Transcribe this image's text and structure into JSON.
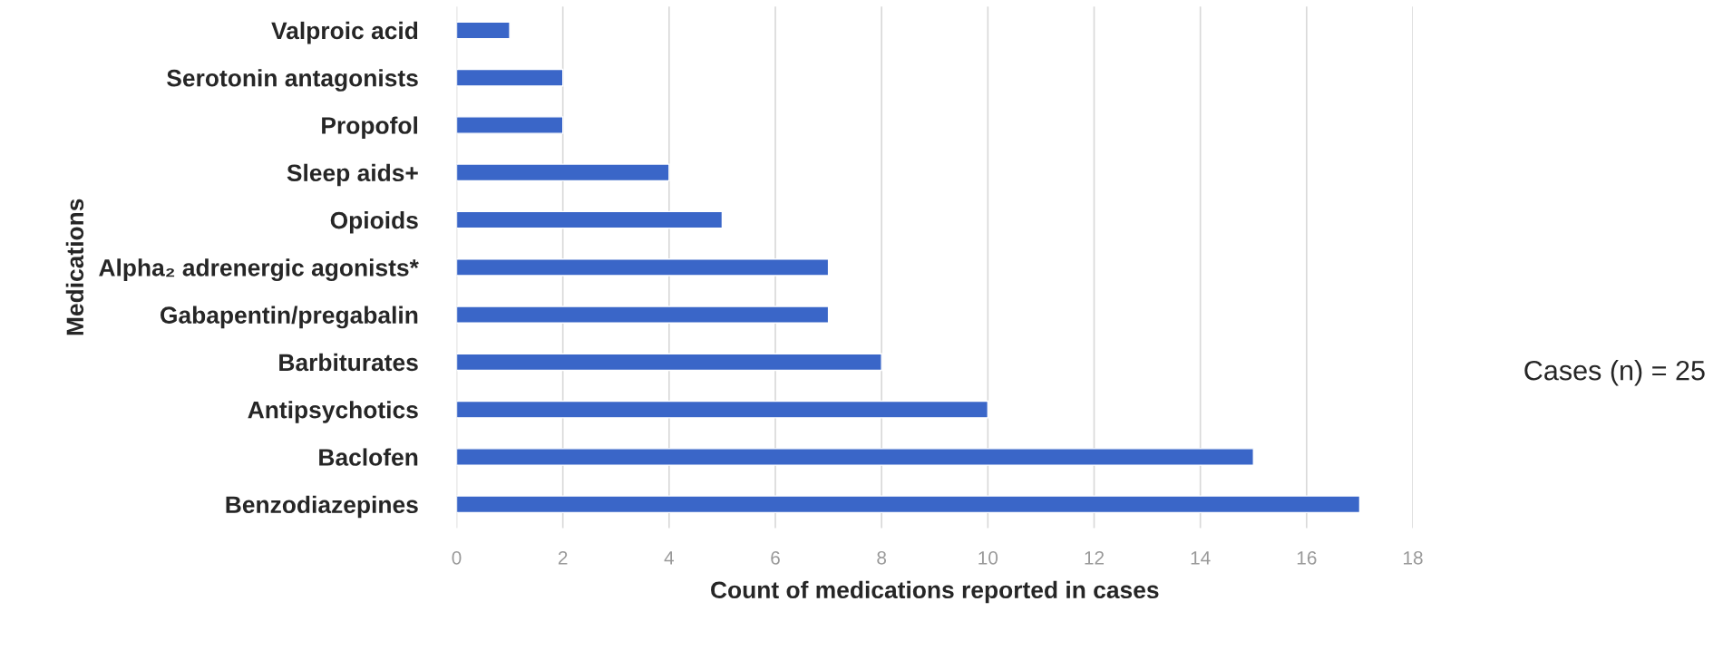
{
  "chart_data": {
    "type": "bar",
    "orientation": "horizontal",
    "categories": [
      "Valproic acid",
      "Serotonin antagonists",
      "Propofol",
      "Sleep aids+",
      "Opioids",
      "Alpha₂ adrenergic agonists*",
      "Gabapentin/pregabalin",
      "Barbiturates",
      "Antipsychotics",
      "Baclofen",
      "Benzodiazepines"
    ],
    "values": [
      1,
      2,
      2,
      4,
      5,
      7,
      7,
      8,
      10,
      15,
      17
    ],
    "color": "#3a66c8",
    "xlim": [
      0,
      18
    ],
    "xticks": [
      0,
      2,
      4,
      6,
      8,
      10,
      12,
      14,
      16,
      18
    ],
    "grid": "x",
    "xlabel": "Count of medications reported in cases",
    "ylabel": "Medications",
    "annotations": [
      "Cases (n) = 25"
    ]
  }
}
